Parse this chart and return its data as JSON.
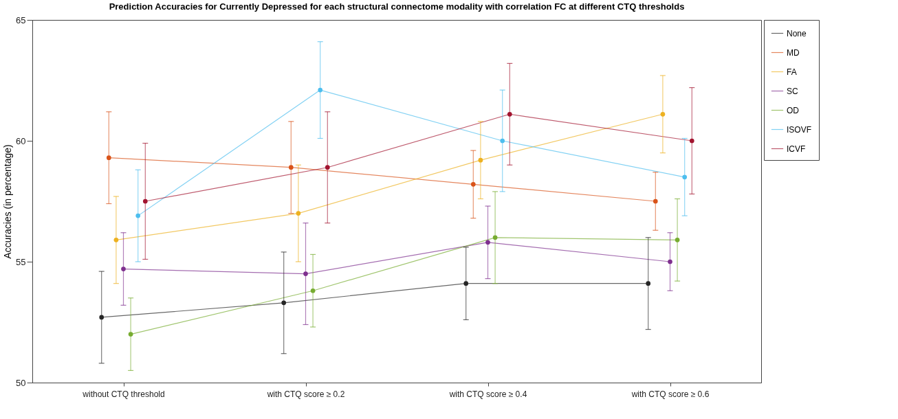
{
  "chart_data": {
    "type": "line",
    "title": "Prediction Accuracies for Currently Depressed for each structural connectome modality with correlation FC at different CTQ thresholds",
    "ylabel": "Accuracies (in percentage)",
    "categories": [
      "without CTQ threshold",
      "with CTQ score ≥ 0.2",
      "with CTQ score ≥ 0.4",
      "with CTQ score ≥ 0.6"
    ],
    "ylim": [
      50,
      65
    ],
    "yticks": [
      50,
      55,
      60,
      65
    ],
    "grid": false,
    "legend": "right",
    "marker": "circle",
    "line_style": "solid",
    "series": [
      {
        "name": "None",
        "color": "#262626",
        "values": [
          52.7,
          53.3,
          54.1,
          54.1
        ],
        "errors": [
          1.9,
          2.1,
          1.5,
          1.9
        ]
      },
      {
        "name": "MD",
        "color": "#d95319",
        "values": [
          59.3,
          58.9,
          58.2,
          57.5
        ],
        "errors": [
          1.9,
          1.9,
          1.4,
          1.2
        ]
      },
      {
        "name": "FA",
        "color": "#edb120",
        "values": [
          55.9,
          57.0,
          59.2,
          61.1
        ],
        "errors": [
          1.8,
          2.0,
          1.6,
          1.6
        ]
      },
      {
        "name": "SC",
        "color": "#7e2f8e",
        "values": [
          54.7,
          54.5,
          55.8,
          55.0
        ],
        "errors": [
          1.5,
          2.1,
          1.5,
          1.2
        ]
      },
      {
        "name": "OD",
        "color": "#77ac30",
        "values": [
          52.0,
          53.8,
          56.0,
          55.9
        ],
        "errors": [
          1.5,
          1.5,
          1.9,
          1.7
        ]
      },
      {
        "name": "ISOVF",
        "color": "#4dbeee",
        "values": [
          56.9,
          62.1,
          60.0,
          58.5
        ],
        "errors": [
          1.9,
          2.0,
          2.1,
          1.6
        ]
      },
      {
        "name": "ICVF",
        "color": "#a2142f",
        "values": [
          57.5,
          58.9,
          61.1,
          60.0
        ],
        "errors": [
          2.4,
          2.3,
          2.1,
          2.2
        ]
      }
    ]
  }
}
